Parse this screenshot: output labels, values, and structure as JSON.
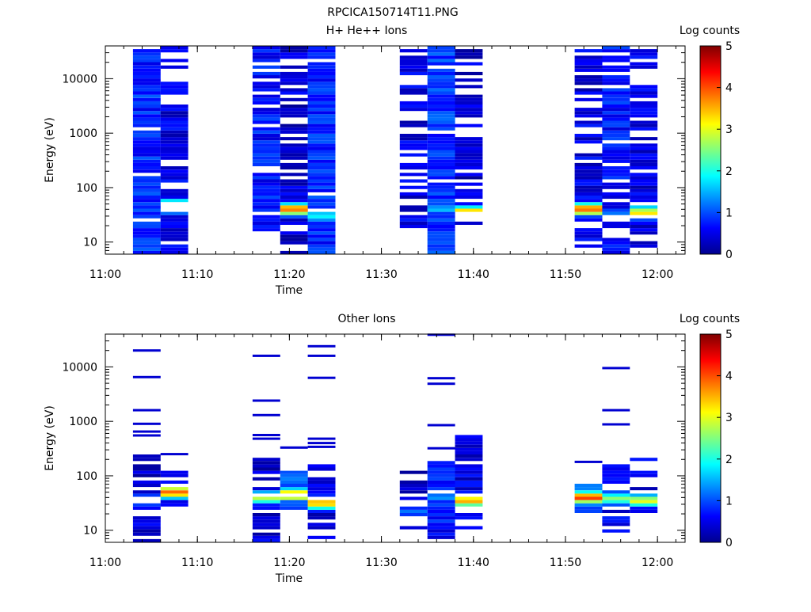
{
  "figure_title": "RPCICA150714T11.PNG",
  "chart_data": [
    {
      "type": "heatmap",
      "title": "H+ He++ Ions",
      "xlabel": "Time",
      "ylabel": "Energy (eV)",
      "y_scale": "log",
      "x_range": [
        "11:00",
        "12:03"
      ],
      "y_range": [
        6,
        40000
      ],
      "x_ticks": [
        "11:00",
        "11:10",
        "11:20",
        "11:30",
        "11:40",
        "11:50",
        "12:00"
      ],
      "y_ticks": [
        "10",
        "100",
        "1000",
        "10000"
      ],
      "colorbar": {
        "label": "Log counts",
        "range": [
          0,
          5
        ],
        "ticks": [
          "0",
          "1",
          "2",
          "3",
          "4",
          "5"
        ]
      },
      "columns": [
        {
          "t_start": "11:03",
          "t_end": "11:06",
          "profile": "flat",
          "level": 0.8,
          "hot_e": null,
          "hot_lvl": 0,
          "gaps": 0.12,
          "e_min": 6,
          "e_max": 40000
        },
        {
          "t_start": "11:06",
          "t_end": "11:09",
          "profile": "peak",
          "level": 0.5,
          "hot_e": 45,
          "hot_lvl": 4.0,
          "gaps": 0.25,
          "e_min": 6,
          "e_max": 40000
        },
        {
          "t_start": "11:16",
          "t_end": "11:19",
          "profile": "flat",
          "level": 0.7,
          "hot_e": null,
          "hot_lvl": 0,
          "gaps": 0.12,
          "e_min": 15,
          "e_max": 40000
        },
        {
          "t_start": "11:19",
          "t_end": "11:22",
          "profile": "peak",
          "level": 0.4,
          "hot_e": 40,
          "hot_lvl": 3.8,
          "gaps": 0.3,
          "e_min": 6,
          "e_max": 40000
        },
        {
          "t_start": "11:22",
          "t_end": "11:25",
          "profile": "peak",
          "level": 0.8,
          "hot_e": 30,
          "hot_lvl": 1.8,
          "gaps": 0.1,
          "e_min": 6,
          "e_max": 40000
        },
        {
          "t_start": "11:32",
          "t_end": "11:35",
          "profile": "flat",
          "level": 0.5,
          "hot_e": null,
          "hot_lvl": 0,
          "gaps": 0.28,
          "e_min": 15,
          "e_max": 40000
        },
        {
          "t_start": "11:35",
          "t_end": "11:38",
          "profile": "flat",
          "level": 0.9,
          "hot_e": 40,
          "hot_lvl": 1.6,
          "gaps": 0.05,
          "e_min": 6,
          "e_max": 40000
        },
        {
          "t_start": "11:38",
          "t_end": "11:41",
          "profile": "peak",
          "level": 0.4,
          "hot_e": 35,
          "hot_lvl": 3.6,
          "gaps": 0.3,
          "e_min": 20,
          "e_max": 40000
        },
        {
          "t_start": "11:51",
          "t_end": "11:54",
          "profile": "peak",
          "level": 0.5,
          "hot_e": 40,
          "hot_lvl": 4.0,
          "gaps": 0.3,
          "e_min": 6,
          "e_max": 40000
        },
        {
          "t_start": "11:54",
          "t_end": "11:57",
          "profile": "flat",
          "level": 0.7,
          "hot_e": 30,
          "hot_lvl": 1.5,
          "gaps": 0.12,
          "e_min": 6,
          "e_max": 40000
        },
        {
          "t_start": "11:57",
          "t_end": "12:00",
          "profile": "peak",
          "level": 0.5,
          "hot_e": 35,
          "hot_lvl": 3.2,
          "gaps": 0.3,
          "e_min": 6,
          "e_max": 40000
        }
      ]
    },
    {
      "type": "heatmap",
      "title": "Other Ions",
      "xlabel": "Time",
      "ylabel": "Energy (eV)",
      "y_scale": "log",
      "x_range": [
        "11:00",
        "12:03"
      ],
      "y_range": [
        6,
        40000
      ],
      "x_ticks": [
        "11:00",
        "11:10",
        "11:20",
        "11:30",
        "11:40",
        "11:50",
        "12:00"
      ],
      "y_ticks": [
        "10",
        "100",
        "1000",
        "10000"
      ],
      "colorbar": {
        "label": "Log counts",
        "range": [
          0,
          5
        ],
        "ticks": [
          "0",
          "1",
          "2",
          "3",
          "4",
          "5"
        ]
      },
      "columns": [
        {
          "t_start": "11:03",
          "t_end": "11:06",
          "profile": "peak",
          "level": 0.4,
          "hot_e": 35,
          "hot_lvl": 1.5,
          "gaps": 0.2,
          "e_min": 6,
          "e_max": 230,
          "lines": [
            20000,
            6500,
            1600,
            900,
            650,
            550
          ]
        },
        {
          "t_start": "11:06",
          "t_end": "11:09",
          "profile": "peak",
          "level": 0.4,
          "hot_e": 50,
          "hot_lvl": 4.0,
          "gaps": 0.15,
          "e_min": 28,
          "e_max": 120,
          "lines": [
            250
          ]
        },
        {
          "t_start": "11:16",
          "t_end": "11:19",
          "profile": "peak",
          "level": 0.4,
          "hot_e": 40,
          "hot_lvl": 2.8,
          "gaps": 0.3,
          "e_min": 6,
          "e_max": 340,
          "lines": [
            16000,
            2400,
            1300,
            560,
            480
          ]
        },
        {
          "t_start": "11:19",
          "t_end": "11:22",
          "profile": "peak",
          "level": 1.0,
          "hot_e": 45,
          "hot_lvl": 3.9,
          "gaps": 0.1,
          "e_min": 25,
          "e_max": 125,
          "lines": [
            330
          ]
        },
        {
          "t_start": "11:22",
          "t_end": "11:25",
          "profile": "peak",
          "level": 0.4,
          "hot_e": 32,
          "hot_lvl": 3.6,
          "gaps": 0.3,
          "e_min": 6,
          "e_max": 160,
          "lines": [
            24000,
            16000,
            6300,
            480,
            400,
            340
          ]
        },
        {
          "t_start": "11:32",
          "t_end": "11:35",
          "profile": "flat",
          "level": 0.3,
          "hot_e": 22,
          "hot_lvl": 1.2,
          "gaps": 0.45,
          "e_min": 11,
          "e_max": 140,
          "lines": []
        },
        {
          "t_start": "11:35",
          "t_end": "11:38",
          "profile": "flat",
          "level": 0.7,
          "hot_e": 40,
          "hot_lvl": 1.4,
          "gaps": 0.1,
          "e_min": 6,
          "e_max": 190,
          "lines": [
            39000,
            6200,
            4900,
            850,
            320
          ]
        },
        {
          "t_start": "11:38",
          "t_end": "11:41",
          "profile": "peak",
          "level": 0.5,
          "hot_e": 35,
          "hot_lvl": 3.5,
          "gaps": 0.25,
          "e_min": 11,
          "e_max": 560,
          "lines": []
        },
        {
          "t_start": "11:51",
          "t_end": "11:54",
          "profile": "peak",
          "level": 1.0,
          "hot_e": 40,
          "hot_lvl": 4.0,
          "gaps": 0.1,
          "e_min": 20,
          "e_max": 70,
          "lines": [
            180
          ]
        },
        {
          "t_start": "11:54",
          "t_end": "11:57",
          "profile": "peak",
          "level": 0.5,
          "hot_e": 38,
          "hot_lvl": 2.6,
          "gaps": 0.2,
          "e_min": 6,
          "e_max": 180,
          "lines": [
            9500,
            1600,
            880
          ]
        },
        {
          "t_start": "11:57",
          "t_end": "12:00",
          "profile": "peak",
          "level": 0.5,
          "hot_e": 35,
          "hot_lvl": 3.0,
          "gaps": 0.25,
          "e_min": 20,
          "e_max": 210,
          "lines": []
        }
      ]
    }
  ]
}
